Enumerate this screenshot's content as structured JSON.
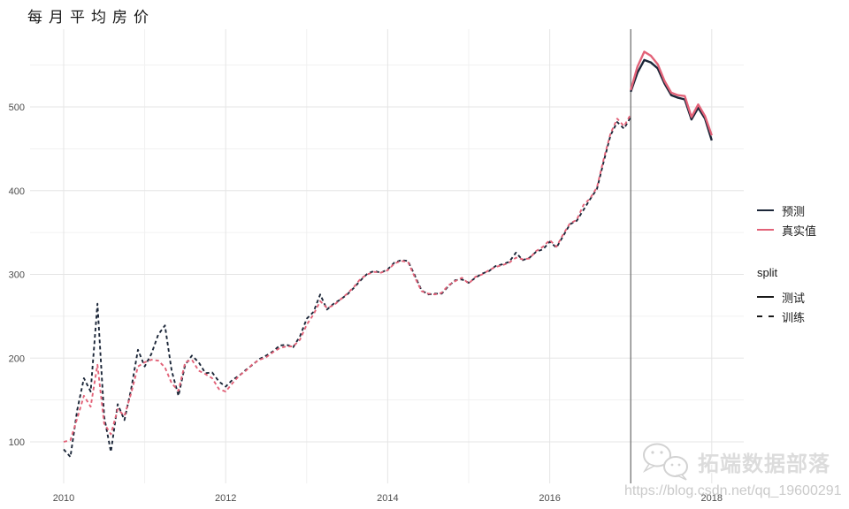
{
  "chart": {
    "title": "每月平均房价"
  },
  "legend": {
    "series_items": [
      {
        "label": "预测",
        "color_key": "pred"
      },
      {
        "label": "真实值",
        "color_key": "actual"
      }
    ],
    "split_title": "split",
    "split_items": [
      {
        "label": "测试",
        "style": "solid"
      },
      {
        "label": "训练",
        "style": "dashed"
      }
    ]
  },
  "watermark": {
    "brand": "拓端数据部落",
    "url": "https://blog.csdn.net/qq_19600291"
  },
  "colors": {
    "pred": "#1B2638",
    "actual": "#E26278",
    "split_key": "#1A1A1A",
    "grid_major": "#E5E5E5",
    "grid_minor": "#F1F1F1",
    "axis_text": "#4D4D4D",
    "split_line": "#6A6A6A"
  },
  "chart_data": {
    "type": "line",
    "title": "每月平均房价",
    "xlabel": "",
    "ylabel": "",
    "x_ticks": [
      2010,
      2012,
      2014,
      2016,
      2018
    ],
    "x_minor_ticks": [
      2011,
      2013,
      2015,
      2017
    ],
    "y_ticks": [
      100,
      200,
      300,
      400,
      500
    ],
    "y_minor_ticks": [
      150,
      250,
      350,
      450,
      550
    ],
    "x_range": [
      2009.58,
      2018.4
    ],
    "y_range": [
      50,
      593
    ],
    "grid": true,
    "legend_position": "right",
    "split_x": 2017,
    "series": [
      {
        "id": "pred-train",
        "name": "预测",
        "split": "训练",
        "color_key": "pred",
        "dash": true,
        "start_year": 2010,
        "values": [
          91,
          82,
          138,
          176,
          160,
          265,
          130,
          88,
          145,
          126,
          163,
          210,
          190,
          205,
          228,
          239,
          185,
          155,
          192,
          203,
          195,
          182,
          183,
          172,
          166,
          174,
          179,
          186,
          192,
          199,
          203,
          208,
          215,
          216,
          213,
          226,
          247,
          255,
          276,
          258,
          265,
          270,
          276,
          284,
          293,
          301,
          304,
          302,
          306,
          314,
          317,
          316,
          299,
          281,
          276,
          277,
          277,
          286,
          293,
          294,
          290,
          296,
          301,
          304,
          310,
          312,
          315,
          326,
          317,
          320,
          327,
          330,
          339,
          332,
          346,
          360,
          364,
          377,
          390,
          402,
          435,
          466,
          482,
          474,
          488
        ]
      },
      {
        "id": "actual-train",
        "name": "真实值",
        "split": "训练",
        "color_key": "actual",
        "dash": true,
        "start_year": 2010,
        "values": [
          100,
          102,
          128,
          155,
          142,
          192,
          122,
          109,
          139,
          131,
          158,
          190,
          195,
          198,
          197,
          189,
          170,
          161,
          195,
          198,
          185,
          181,
          176,
          163,
          160,
          170,
          179,
          185,
          193,
          198,
          201,
          207,
          212,
          214,
          214,
          222,
          240,
          252,
          268,
          260,
          263,
          270,
          277,
          285,
          295,
          300,
          303,
          302,
          305,
          313,
          316,
          315,
          297,
          280,
          277,
          276,
          278,
          287,
          292,
          296,
          289,
          297,
          300,
          305,
          309,
          311,
          314,
          320,
          318,
          319,
          328,
          333,
          341,
          333,
          348,
          361,
          365,
          383,
          391,
          404,
          438,
          468,
          486,
          477,
          491
        ]
      },
      {
        "id": "pred-test",
        "name": "预测",
        "split": "测试",
        "color_key": "pred",
        "dash": false,
        "start_year": 2017,
        "values": [
          518,
          541,
          556,
          553,
          546,
          528,
          514,
          511,
          509,
          485,
          499,
          486,
          460
        ]
      },
      {
        "id": "actual-test",
        "name": "真实值",
        "split": "测试",
        "color_key": "actual",
        "dash": false,
        "start_year": 2017,
        "values": [
          520,
          548,
          566,
          561,
          551,
          531,
          517,
          514,
          513,
          488,
          503,
          489,
          466
        ]
      }
    ]
  }
}
